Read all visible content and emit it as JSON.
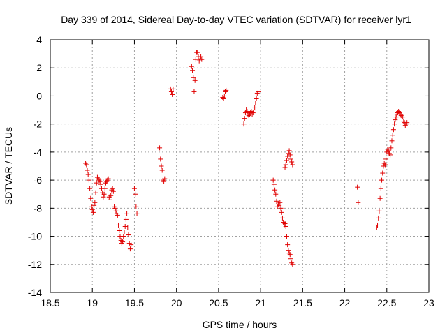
{
  "chart_data": {
    "type": "scatter",
    "title": "Day 339 of 2014, Sidereal Day-to-day VTEC variation (SDTVAR) for receiver lyr1",
    "xlabel": "GPS time / hours",
    "ylabel": "SDTVAR / TECUs",
    "xlim": [
      18.5,
      23
    ],
    "ylim": [
      -14,
      4
    ],
    "xticks": [
      18.5,
      19,
      19.5,
      20,
      20.5,
      21,
      21.5,
      22,
      22.5,
      23
    ],
    "xtick_labels": [
      "18.5",
      "19",
      "19.5",
      "20",
      "20.5",
      "21",
      "21.5",
      "22",
      "22.5",
      "23"
    ],
    "yticks": [
      -14,
      -12,
      -10,
      -8,
      -6,
      -4,
      -2,
      0,
      2,
      4
    ],
    "ytick_labels": [
      "-14",
      "-12",
      "-10",
      "-8",
      "-6",
      "-4",
      "-2",
      "0",
      "2",
      "4"
    ],
    "grid": true,
    "marker": "+",
    "color": "#e00000",
    "series": [
      {
        "name": "SDTVAR",
        "points": [
          [
            18.92,
            -4.8
          ],
          [
            18.93,
            -4.9
          ],
          [
            18.94,
            -5.3
          ],
          [
            18.95,
            -5.6
          ],
          [
            18.96,
            -6.0
          ],
          [
            18.97,
            -6.6
          ],
          [
            18.98,
            -7.3
          ],
          [
            18.99,
            -7.9
          ],
          [
            19.0,
            -8.1
          ],
          [
            19.01,
            -8.3
          ],
          [
            19.02,
            -7.8
          ],
          [
            19.03,
            -7.6
          ],
          [
            19.04,
            -6.9
          ],
          [
            19.05,
            -6.2
          ],
          [
            19.06,
            -5.8
          ],
          [
            19.07,
            -5.9
          ],
          [
            19.08,
            -6.0
          ],
          [
            19.09,
            -6.1
          ],
          [
            19.1,
            -6.3
          ],
          [
            19.11,
            -6.6
          ],
          [
            19.12,
            -6.9
          ],
          [
            19.13,
            -7.2
          ],
          [
            19.14,
            -7.0
          ],
          [
            19.15,
            -6.6
          ],
          [
            19.16,
            -6.2
          ],
          [
            19.17,
            -6.1
          ],
          [
            19.18,
            -6.0
          ],
          [
            19.19,
            -5.9
          ],
          [
            19.2,
            -7.2
          ],
          [
            19.21,
            -7.4
          ],
          [
            19.22,
            -7.1
          ],
          [
            19.23,
            -6.7
          ],
          [
            19.24,
            -6.6
          ],
          [
            19.25,
            -6.8
          ],
          [
            19.26,
            -7.9
          ],
          [
            19.27,
            -8.0
          ],
          [
            19.28,
            -8.2
          ],
          [
            19.29,
            -8.4
          ],
          [
            19.3,
            -8.5
          ],
          [
            19.31,
            -9.2
          ],
          [
            19.32,
            -9.6
          ],
          [
            19.33,
            -10.0
          ],
          [
            19.34,
            -10.3
          ],
          [
            19.35,
            -10.5
          ],
          [
            19.36,
            -10.4
          ],
          [
            19.37,
            -10.0
          ],
          [
            19.38,
            -9.7
          ],
          [
            19.39,
            -9.3
          ],
          [
            19.4,
            -8.8
          ],
          [
            19.41,
            -8.4
          ],
          [
            19.42,
            -9.4
          ],
          [
            19.43,
            -9.9
          ],
          [
            19.44,
            -10.5
          ],
          [
            19.45,
            -10.9
          ],
          [
            19.46,
            -10.6
          ],
          [
            19.5,
            -6.6
          ],
          [
            19.51,
            -7.0
          ],
          [
            19.52,
            -7.9
          ],
          [
            19.53,
            -8.4
          ],
          [
            19.8,
            -3.7
          ],
          [
            19.81,
            -4.5
          ],
          [
            19.82,
            -5.0
          ],
          [
            19.83,
            -5.3
          ],
          [
            19.84,
            -6.0
          ],
          [
            19.85,
            -6.1
          ],
          [
            19.86,
            -5.9
          ],
          [
            19.93,
            0.5
          ],
          [
            19.94,
            0.3
          ],
          [
            19.95,
            0.1
          ],
          [
            19.96,
            0.5
          ],
          [
            20.18,
            2.1
          ],
          [
            20.19,
            1.8
          ],
          [
            20.2,
            1.3
          ],
          [
            20.21,
            0.3
          ],
          [
            20.22,
            1.1
          ],
          [
            20.23,
            2.6
          ],
          [
            20.24,
            3.1
          ],
          [
            20.25,
            3.1
          ],
          [
            20.26,
            2.8
          ],
          [
            20.27,
            2.5
          ],
          [
            20.28,
            2.6
          ],
          [
            20.29,
            2.8
          ],
          [
            20.3,
            2.6
          ],
          [
            20.55,
            -0.1
          ],
          [
            20.56,
            -0.2
          ],
          [
            20.57,
            0.0
          ],
          [
            20.58,
            0.3
          ],
          [
            20.59,
            0.4
          ],
          [
            20.8,
            -2.0
          ],
          [
            20.81,
            -1.6
          ],
          [
            20.82,
            -1.2
          ],
          [
            20.83,
            -1.0
          ],
          [
            20.84,
            -1.1
          ],
          [
            20.85,
            -1.3
          ],
          [
            20.86,
            -1.4
          ],
          [
            20.87,
            -1.3
          ],
          [
            20.88,
            -1.2
          ],
          [
            20.89,
            -1.1
          ],
          [
            20.9,
            -1.3
          ],
          [
            20.91,
            -1.2
          ],
          [
            20.92,
            -1.0
          ],
          [
            20.93,
            -0.8
          ],
          [
            20.94,
            -0.5
          ],
          [
            20.95,
            -0.2
          ],
          [
            20.96,
            0.2
          ],
          [
            20.97,
            0.3
          ],
          [
            21.15,
            -6.0
          ],
          [
            21.16,
            -6.3
          ],
          [
            21.17,
            -6.7
          ],
          [
            21.18,
            -7.0
          ],
          [
            21.19,
            -7.5
          ],
          [
            21.2,
            -7.9
          ],
          [
            21.21,
            -7.7
          ],
          [
            21.22,
            -7.8
          ],
          [
            21.23,
            -7.6
          ],
          [
            21.24,
            -8.0
          ],
          [
            21.25,
            -8.3
          ],
          [
            21.26,
            -8.7
          ],
          [
            21.27,
            -9.0
          ],
          [
            21.28,
            -9.2
          ],
          [
            21.29,
            -9.1
          ],
          [
            21.3,
            -9.3
          ],
          [
            21.31,
            -10.0
          ],
          [
            21.32,
            -10.6
          ],
          [
            21.33,
            -11.0
          ],
          [
            21.34,
            -11.2
          ],
          [
            21.35,
            -11.3
          ],
          [
            21.36,
            -11.6
          ],
          [
            21.37,
            -11.9
          ],
          [
            21.38,
            -12.0
          ],
          [
            21.29,
            -5.1
          ],
          [
            21.3,
            -4.9
          ],
          [
            21.31,
            -4.6
          ],
          [
            21.32,
            -4.3
          ],
          [
            21.33,
            -4.1
          ],
          [
            21.34,
            -3.9
          ],
          [
            21.35,
            -4.2
          ],
          [
            21.36,
            -4.5
          ],
          [
            21.37,
            -4.7
          ],
          [
            21.38,
            -4.9
          ],
          [
            22.15,
            -6.5
          ],
          [
            22.16,
            -7.6
          ],
          [
            22.38,
            -9.4
          ],
          [
            22.39,
            -9.2
          ],
          [
            22.4,
            -8.7
          ],
          [
            22.41,
            -8.2
          ],
          [
            22.42,
            -7.3
          ],
          [
            22.43,
            -6.6
          ],
          [
            22.44,
            -6.0
          ],
          [
            22.45,
            -5.5
          ],
          [
            22.46,
            -5.0
          ],
          [
            22.47,
            -4.8
          ],
          [
            22.48,
            -4.9
          ],
          [
            22.49,
            -4.5
          ],
          [
            22.5,
            -4.0
          ],
          [
            22.51,
            -3.8
          ],
          [
            22.52,
            -3.9
          ],
          [
            22.53,
            -4.1
          ],
          [
            22.54,
            -4.2
          ],
          [
            22.55,
            -3.7
          ],
          [
            22.56,
            -3.2
          ],
          [
            22.57,
            -2.8
          ],
          [
            22.58,
            -2.4
          ],
          [
            22.59,
            -2.0
          ],
          [
            22.6,
            -1.7
          ],
          [
            22.61,
            -1.5
          ],
          [
            22.62,
            -1.3
          ],
          [
            22.63,
            -1.2
          ],
          [
            22.64,
            -1.1
          ],
          [
            22.65,
            -1.2
          ],
          [
            22.66,
            -1.3
          ],
          [
            22.67,
            -1.4
          ],
          [
            22.68,
            -1.3
          ],
          [
            22.69,
            -1.5
          ],
          [
            22.7,
            -1.8
          ],
          [
            22.71,
            -1.9
          ],
          [
            22.72,
            -2.1
          ],
          [
            22.73,
            -2.0
          ],
          [
            22.74,
            -1.9
          ]
        ]
      }
    ]
  }
}
